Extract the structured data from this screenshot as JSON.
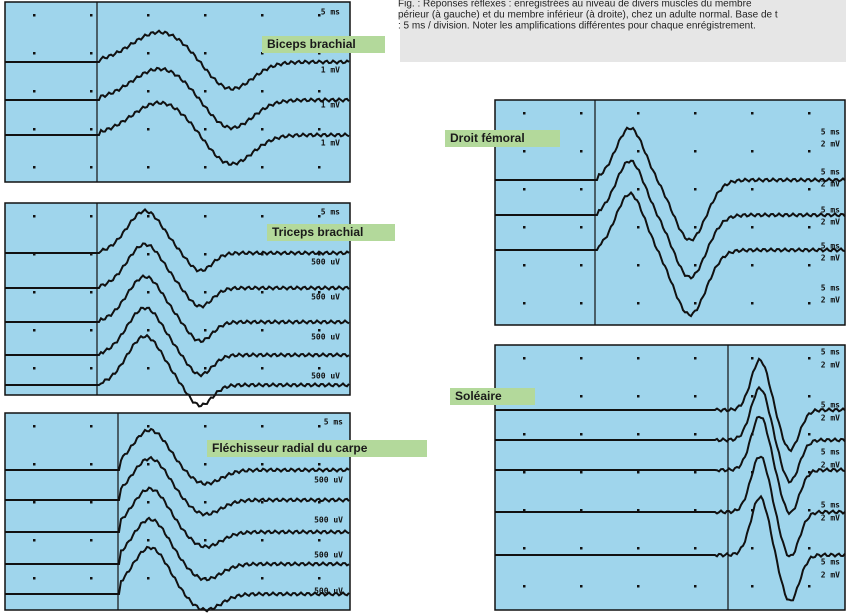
{
  "caption": [
    "Fig. : Réponses réflexes : enregistrées au niveau de divers muscles du membre",
    "périeur (à gauche) et du membre inférieur (à droite), chez un adulte normal. Base de t",
    ": 5 ms / division. Noter les amplifications différentes pour chaque enrégistrement."
  ],
  "panels": [
    {
      "label": "Biceps brachial",
      "scale": [
        "5 ms",
        "1 mV",
        "1 mV",
        "1 mV"
      ]
    },
    {
      "label": "Triceps brachial",
      "scale": [
        "5 ms",
        "500 uV",
        "500 uV",
        "500 uV",
        "500 uV"
      ]
    },
    {
      "label": "Fléchisseur radial du carpe",
      "scale": [
        "5 ms",
        "500 uV",
        "500 uV",
        "500 uV",
        "500 uV"
      ]
    },
    {
      "label": "Droit fémoral",
      "scale": [
        "5 ms",
        "2 mV",
        "5 ms",
        "2 mV",
        "5 ms",
        "2 mV",
        "5 ms",
        "2 mV",
        "5 ms",
        "2 mV"
      ]
    },
    {
      "label": "Soléaire",
      "scale": [
        "5 ms",
        "2 mV",
        "5 ms",
        "2 mV",
        "5 ms",
        "2 mV",
        "5 ms",
        "2 mV",
        "5 ms",
        "2 mV"
      ]
    }
  ]
}
